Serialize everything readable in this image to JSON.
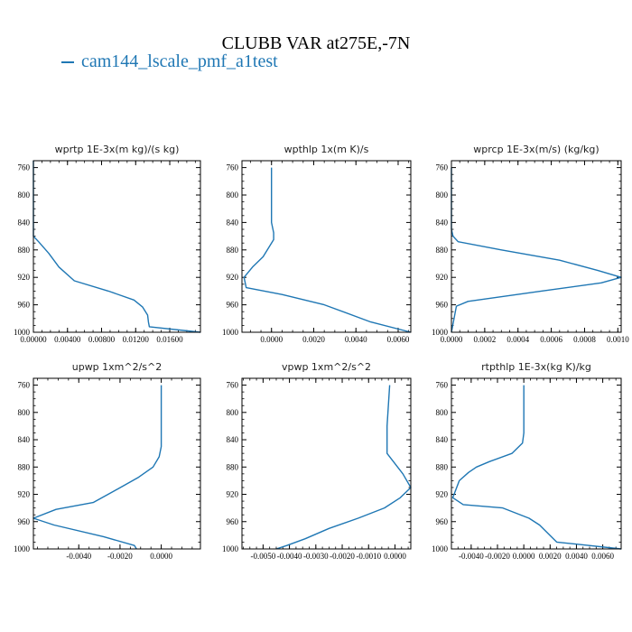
{
  "title": "CLUBB VAR at275E,-7N",
  "legend": "cam144_lscale_pmf_a1test",
  "colors": {
    "series": "#1f77b4",
    "axis": "#000000"
  },
  "chart_data": [
    {
      "type": "line",
      "title": "wprtp  1E-3x(m kg)/(s kg)",
      "xlim": [
        0,
        0.0196
      ],
      "ylim": [
        1000,
        750
      ],
      "xticks": [
        0,
        0.004,
        0.008,
        0.012,
        0.016
      ],
      "xticklabels": [
        "0.00000",
        "0.00400",
        "0.00800",
        "0.01200",
        "0.01600"
      ],
      "yticks": [
        760,
        800,
        840,
        880,
        920,
        960,
        1000
      ],
      "series": [
        {
          "x": [
            0,
            0,
            0.0006,
            0.0018,
            0.003,
            0.0048,
            0.0088,
            0.0118,
            0.0128,
            0.0134,
            0.0135,
            0.0136,
            0.0196
          ],
          "y": [
            750,
            860,
            868,
            885,
            905,
            925,
            940,
            953,
            963,
            975,
            985,
            992,
            1000
          ]
        }
      ]
    },
    {
      "type": "line",
      "title": "wpthlp  1x(m K)/s",
      "xlim": [
        -0.0014,
        0.0066
      ],
      "ylim": [
        1000,
        750
      ],
      "xticks": [
        0,
        0.002,
        0.004,
        0.006
      ],
      "xticklabels": [
        "0.0000",
        "0.0020",
        "0.0040",
        "0.0060"
      ],
      "yticks": [
        760,
        800,
        840,
        880,
        920,
        960,
        1000
      ],
      "series": [
        {
          "x": [
            0,
            0,
            0.0001,
            0.0001,
            -0.0004,
            -0.0009,
            -0.0013,
            -0.0012,
            0.0005,
            0.0025,
            0.0047,
            0.0066
          ],
          "y": [
            760,
            840,
            855,
            865,
            890,
            905,
            920,
            935,
            945,
            960,
            985,
            1000
          ]
        }
      ]
    },
    {
      "type": "line",
      "title": "wprcp  1E-3x(m/s) (kg/kg)",
      "xlim": [
        0,
        0.00102
      ],
      "ylim": [
        1000,
        750
      ],
      "xticks": [
        0,
        0.0002,
        0.0004,
        0.0006,
        0.0008,
        0.001
      ],
      "xticklabels": [
        "0.0000",
        "0.0002",
        "0.0004",
        "0.0006",
        "0.0008",
        "0.0010"
      ],
      "yticks": [
        760,
        800,
        840,
        880,
        920,
        960,
        1000
      ],
      "series": [
        {
          "x": [
            0,
            0,
            1e-05,
            4e-05,
            0.0003,
            0.00065,
            0.00088,
            0.00102,
            0.0009,
            0.00054,
            0.0001,
            3e-05,
            0
          ],
          "y": [
            760,
            850,
            860,
            868,
            880,
            895,
            910,
            920,
            928,
            940,
            955,
            962,
            1000
          ]
        }
      ]
    },
    {
      "type": "line",
      "title": "upwp  1xm^2/s^2",
      "xlim": [
        -0.0062,
        0.0019
      ],
      "ylim": [
        1000,
        750
      ],
      "xticks": [
        -0.004,
        -0.002,
        0
      ],
      "xticklabels": [
        "-0.0040",
        "-0.0020",
        "0.0000"
      ],
      "yticks": [
        760,
        800,
        840,
        880,
        920,
        960,
        1000
      ],
      "series": [
        {
          "x": [
            0,
            0,
            -0.0001,
            -0.0004,
            -0.0011,
            -0.0021,
            -0.0033,
            -0.0051,
            -0.0062,
            -0.0052,
            -0.0028,
            -0.0013,
            -0.0012
          ],
          "y": [
            760,
            850,
            865,
            880,
            895,
            912,
            932,
            942,
            955,
            965,
            982,
            995,
            1000
          ]
        }
      ]
    },
    {
      "type": "line",
      "title": "vpwp  1xm^2/s^2",
      "xlim": [
        -0.0058,
        0.0006
      ],
      "ylim": [
        1000,
        750
      ],
      "xticks": [
        -0.005,
        -0.004,
        -0.003,
        -0.002,
        -0.001,
        0
      ],
      "xticklabels": [
        "-0.0050",
        "-0.0040",
        "-0.0030",
        "-0.0020",
        "-0.0010",
        "0.0000"
      ],
      "yticks": [
        760,
        800,
        840,
        880,
        920,
        960,
        1000
      ],
      "series": [
        {
          "x": [
            -0.0002,
            -0.0003,
            -0.0003,
            -0.0001,
            0.0003,
            0.0006,
            0.0002,
            -0.0004,
            -0.0014,
            -0.0025,
            -0.0034,
            -0.0041,
            -0.0045
          ],
          "y": [
            760,
            820,
            860,
            870,
            890,
            910,
            925,
            940,
            955,
            970,
            985,
            995,
            1000
          ]
        }
      ]
    },
    {
      "type": "line",
      "title": "rtpthlp  1E-3x(kg K)/kg",
      "xlim": [
        -0.0055,
        0.0074
      ],
      "ylim": [
        1000,
        750
      ],
      "xticks": [
        -0.004,
        -0.002,
        0,
        0.002,
        0.004,
        0.006
      ],
      "xticklabels": [
        "-0.0040",
        "-0.0020",
        "0.0000",
        "0.0020",
        "0.0040",
        "0.0060"
      ],
      "yticks": [
        760,
        800,
        840,
        880,
        920,
        960,
        1000
      ],
      "series": [
        {
          "x": [
            0,
            0,
            -0.0001,
            -0.0009,
            -0.0026,
            -0.0036,
            -0.0042,
            -0.0049,
            -0.0054,
            -0.0046,
            -0.0016,
            0.0004,
            0.0012,
            0.0025,
            0.0074
          ],
          "y": [
            760,
            830,
            845,
            860,
            872,
            880,
            888,
            900,
            925,
            935,
            940,
            955,
            965,
            990,
            1000
          ]
        }
      ]
    }
  ]
}
